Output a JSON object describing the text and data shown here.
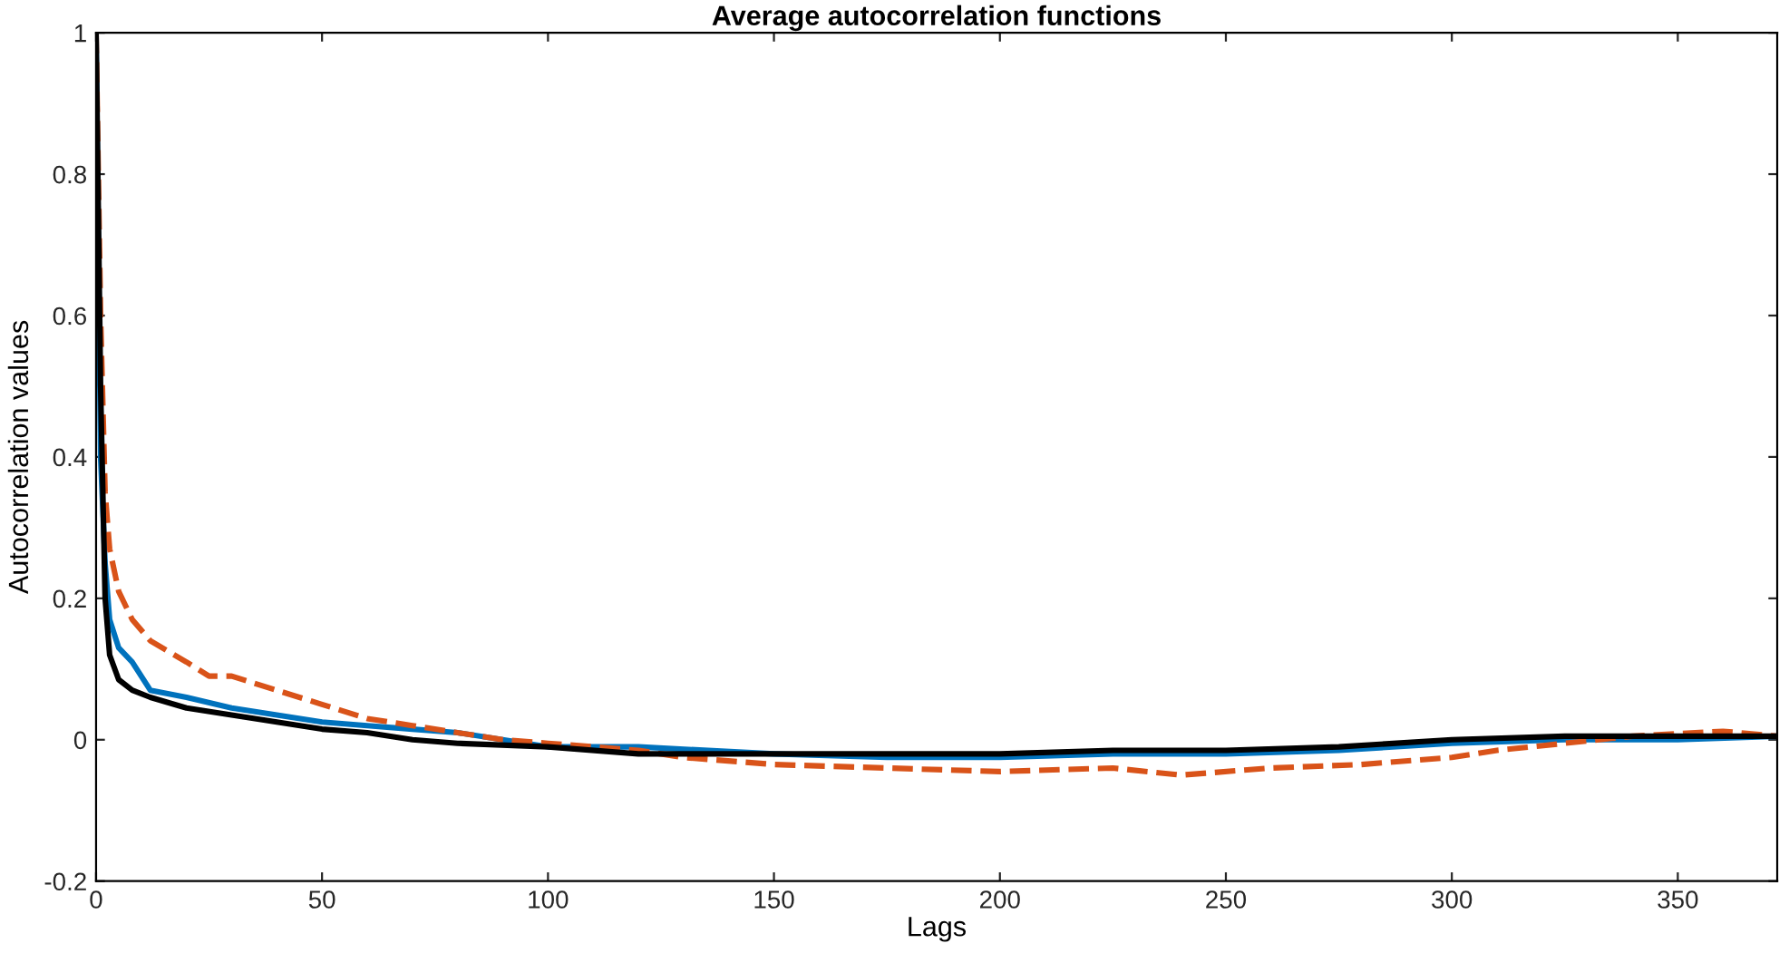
{
  "chart_data": {
    "type": "line",
    "title": "Average autocorrelation functions",
    "xlabel": "Lags",
    "ylabel": "Autocorrelation values",
    "xlim": [
      0,
      372
    ],
    "ylim": [
      -0.2,
      1
    ],
    "xticks": [
      0,
      50,
      100,
      150,
      200,
      250,
      300,
      350
    ],
    "yticks": [
      -0.2,
      0,
      0.2,
      0.4,
      0.6,
      0.8,
      1
    ],
    "grid": false,
    "series": [
      {
        "color": "#0072bd",
        "line_style": "solid",
        "x": [
          0,
          1,
          2,
          3,
          5,
          8,
          12,
          20,
          30,
          40,
          50,
          60,
          70,
          80,
          100,
          120,
          150,
          175,
          200,
          225,
          250,
          275,
          300,
          325,
          350,
          372
        ],
        "values": [
          1,
          0.4,
          0.25,
          0.17,
          0.13,
          0.11,
          0.07,
          0.06,
          0.045,
          0.035,
          0.025,
          0.02,
          0.015,
          0.01,
          -0.01,
          -0.01,
          -0.02,
          -0.025,
          -0.025,
          -0.02,
          -0.02,
          -0.015,
          -0.005,
          0.0,
          0.0,
          0.005
        ]
      },
      {
        "color": "#d95319",
        "line_style": "dashed",
        "x": [
          0,
          1,
          2,
          3,
          5,
          8,
          12,
          20,
          25,
          30,
          40,
          50,
          60,
          70,
          80,
          90,
          100,
          120,
          130,
          150,
          175,
          200,
          225,
          240,
          260,
          280,
          300,
          310,
          325,
          340,
          360,
          372
        ],
        "values": [
          1,
          0.6,
          0.35,
          0.27,
          0.21,
          0.17,
          0.14,
          0.11,
          0.09,
          0.09,
          0.07,
          0.05,
          0.03,
          0.02,
          0.01,
          0.0,
          -0.005,
          -0.015,
          -0.025,
          -0.035,
          -0.04,
          -0.045,
          -0.04,
          -0.05,
          -0.04,
          -0.035,
          -0.025,
          -0.015,
          -0.005,
          0.005,
          0.012,
          0.005
        ]
      },
      {
        "color": "#000000",
        "line_style": "solid",
        "x": [
          0,
          1,
          2,
          3,
          5,
          8,
          12,
          20,
          30,
          40,
          50,
          60,
          70,
          80,
          100,
          120,
          150,
          175,
          200,
          225,
          250,
          275,
          300,
          325,
          350,
          372
        ],
        "values": [
          1,
          0.5,
          0.2,
          0.12,
          0.085,
          0.07,
          0.06,
          0.045,
          0.035,
          0.025,
          0.015,
          0.01,
          0.0,
          -0.005,
          -0.01,
          -0.02,
          -0.02,
          -0.02,
          -0.02,
          -0.015,
          -0.015,
          -0.01,
          0.0,
          0.005,
          0.005,
          0.005
        ]
      }
    ]
  }
}
